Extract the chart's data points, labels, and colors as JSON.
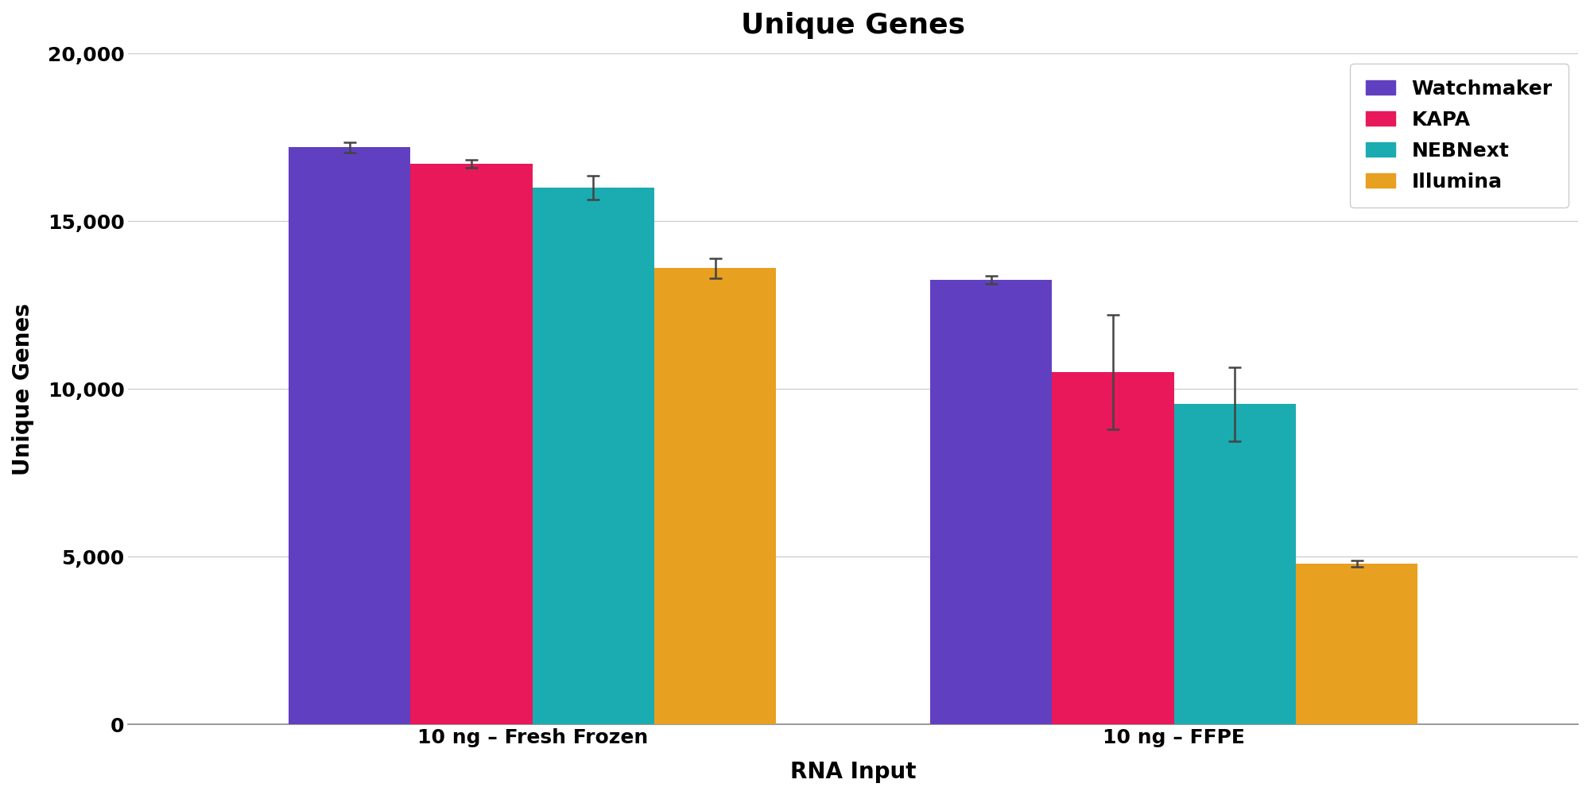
{
  "title": "Unique Genes",
  "xlabel": "RNA Input",
  "ylabel": "Unique Genes",
  "categories": [
    "10 ng – Fresh Frozen",
    "10 ng – FFPE"
  ],
  "series": [
    {
      "name": "Watchmaker",
      "color": "#6040C0",
      "values": [
        17200,
        13250
      ],
      "errors": [
        150,
        120
      ]
    },
    {
      "name": "KAPA",
      "color": "#E8185A",
      "values": [
        16700,
        10500
      ],
      "errors": [
        120,
        1700
      ]
    },
    {
      "name": "NEBNext",
      "color": "#1AACB0",
      "values": [
        16000,
        9550
      ],
      "errors": [
        350,
        1100
      ]
    },
    {
      "name": "Illumina",
      "color": "#E8A020",
      "values": [
        13600,
        4800
      ],
      "errors": [
        300,
        100
      ]
    }
  ],
  "ylim": [
    0,
    20000
  ],
  "yticks": [
    0,
    5000,
    10000,
    15000,
    20000
  ],
  "ytick_labels": [
    "0",
    "5,000",
    "10,000",
    "15,000",
    "20,000"
  ],
  "group_centers": [
    1.0,
    3.0
  ],
  "bar_width": 0.38,
  "background_color": "#ffffff",
  "grid_color": "#cccccc",
  "title_fontsize": 26,
  "axis_label_fontsize": 20,
  "tick_fontsize": 18,
  "legend_fontsize": 18
}
